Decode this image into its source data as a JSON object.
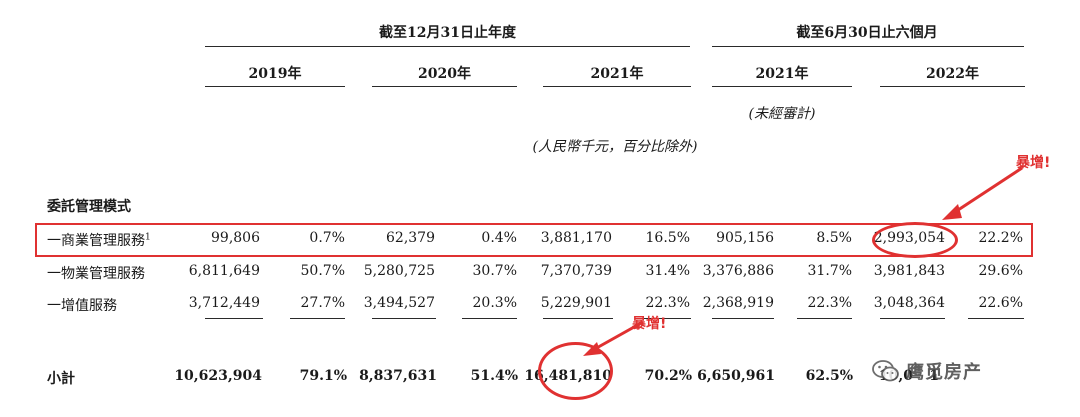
{
  "header": {
    "group_year_end": "截至12月31日止年度",
    "group_six_months": "截至6月30日止六個月",
    "years": [
      "2019年",
      "2020年",
      "2021年",
      "2021年",
      "2022年"
    ],
    "unaudited": "(未經審計)",
    "units": "(人民幣千元，百分比除外)"
  },
  "section_title": "委託管理模式",
  "rows": [
    {
      "label": "一商業管理服務",
      "footnote": "1",
      "values": [
        "99,806",
        "0.7%",
        "62,379",
        "0.4%",
        "3,881,170",
        "16.5%",
        "905,156",
        "8.5%",
        "2,993,054",
        "22.2%"
      ]
    },
    {
      "label": "一物業管理服務",
      "footnote": "",
      "values": [
        "6,811,649",
        "50.7%",
        "5,280,725",
        "30.7%",
        "7,370,739",
        "31.4%",
        "3,376,886",
        "31.7%",
        "3,981,843",
        "29.6%"
      ]
    },
    {
      "label": "一增值服務",
      "footnote": "",
      "values": [
        "3,712,449",
        "27.7%",
        "3,494,527",
        "20.3%",
        "5,229,901",
        "22.3%",
        "2,368,919",
        "22.3%",
        "3,048,364",
        "22.6%"
      ]
    }
  ],
  "subtotal": {
    "label": "小計",
    "values": [
      "10,623,904",
      "79.1%",
      "8,837,631",
      "51.4%",
      "16,481,810",
      "70.2%",
      "6,650,961",
      "62.5%",
      "10,0",
      "1"
    ]
  },
  "annotations": {
    "callout_top": "暴增!",
    "callout_bottom": "暴增!",
    "color": "#e03131"
  },
  "watermark": {
    "icon": "wechat-icon",
    "text": "鹰觅房产"
  }
}
